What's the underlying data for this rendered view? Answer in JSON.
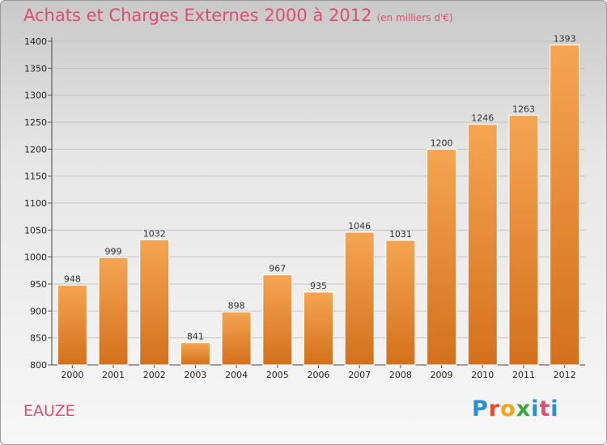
{
  "title": "Achats et Charges Externes 2000 à 2012",
  "unit_note": "(en milliers d'€)",
  "city": "EAUZE",
  "logo": {
    "letters": [
      "P",
      "r",
      "o",
      "x",
      "i",
      "t",
      "i"
    ],
    "colors": [
      "#2a8fd8",
      "#e24c2a",
      "#f2a51a",
      "#3aa93a",
      "#2a8fd8",
      "#e24c71",
      "#2a8fd8"
    ]
  },
  "colors": {
    "title": "#e24c71",
    "bar_top": "#f5a552",
    "bar_bottom": "#d4701b"
  },
  "chart_data": {
    "type": "bar",
    "categories": [
      "2000",
      "2001",
      "2002",
      "2003",
      "2004",
      "2005",
      "2006",
      "2007",
      "2008",
      "2009",
      "2010",
      "2011",
      "2012"
    ],
    "values": [
      948,
      999,
      1032,
      841,
      898,
      967,
      935,
      1046,
      1031,
      1200,
      1246,
      1263,
      1393
    ],
    "ylim": [
      800,
      1400
    ],
    "yticks": [
      800,
      850,
      900,
      950,
      1000,
      1050,
      1100,
      1150,
      1200,
      1250,
      1300,
      1350,
      1400
    ],
    "grid": true,
    "xlabel": "",
    "ylabel": ""
  }
}
